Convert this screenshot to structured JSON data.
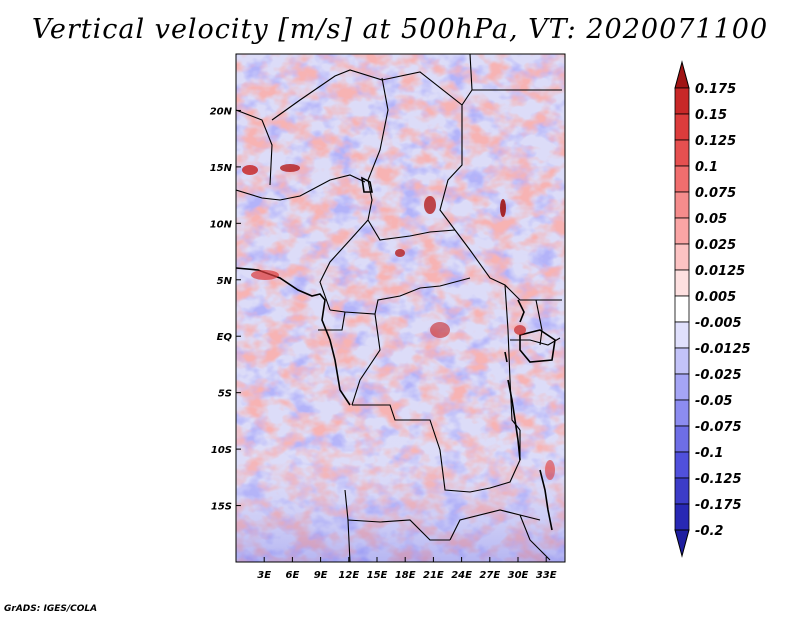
{
  "title": "Vertical velocity [m/s] at 500hPa, VT: 2020071100",
  "credit": "GrADS: IGES/COLA",
  "map": {
    "lon_range": [
      0,
      35
    ],
    "lat_range": [
      -20,
      25
    ],
    "lat_ticks": [
      {
        "value": 20,
        "label": "20N"
      },
      {
        "value": 15,
        "label": "15N"
      },
      {
        "value": 10,
        "label": "10N"
      },
      {
        "value": 5,
        "label": "5N"
      },
      {
        "value": 0,
        "label": "EQ"
      },
      {
        "value": -5,
        "label": "5S"
      },
      {
        "value": -10,
        "label": "10S"
      },
      {
        "value": -15,
        "label": "15S"
      }
    ],
    "lon_ticks": [
      {
        "value": 3,
        "label": "3E"
      },
      {
        "value": 6,
        "label": "6E"
      },
      {
        "value": 9,
        "label": "9E"
      },
      {
        "value": 12,
        "label": "12E"
      },
      {
        "value": 15,
        "label": "15E"
      },
      {
        "value": 18,
        "label": "18E"
      },
      {
        "value": 21,
        "label": "21E"
      },
      {
        "value": 24,
        "label": "24E"
      },
      {
        "value": 27,
        "label": "27E"
      },
      {
        "value": 30,
        "label": "30E"
      },
      {
        "value": 33,
        "label": "33E"
      }
    ]
  },
  "colorbar": {
    "levels": [
      {
        "label": "0.175",
        "color": "#b41e1e"
      },
      {
        "label": "0.15",
        "color": "#c82828"
      },
      {
        "label": "0.125",
        "color": "#dc3c3c"
      },
      {
        "label": "0.1",
        "color": "#e65050"
      },
      {
        "label": "0.075",
        "color": "#f06e6e"
      },
      {
        "label": "0.05",
        "color": "#f58c8c"
      },
      {
        "label": "0.025",
        "color": "#faa5a5"
      },
      {
        "label": "0.0125",
        "color": "#fcc3c3"
      },
      {
        "label": "0.005",
        "color": "#fde0e0"
      },
      {
        "label": "-0.005",
        "color": "#ffffff"
      },
      {
        "label": "-0.0125",
        "color": "#e0e0fc"
      },
      {
        "label": "-0.025",
        "color": "#c3c3f8"
      },
      {
        "label": "-0.05",
        "color": "#a5a5f5"
      },
      {
        "label": "-0.075",
        "color": "#8c8cf0"
      },
      {
        "label": "-0.1",
        "color": "#6e6ee6"
      },
      {
        "label": "-0.125",
        "color": "#5050dc"
      },
      {
        "label": "-0.175",
        "color": "#3c3cc8"
      },
      {
        "label": "-0.2",
        "color": "#2828b4"
      }
    ],
    "top_color": "#a01414",
    "bottom_color": "#1e1ea0"
  }
}
